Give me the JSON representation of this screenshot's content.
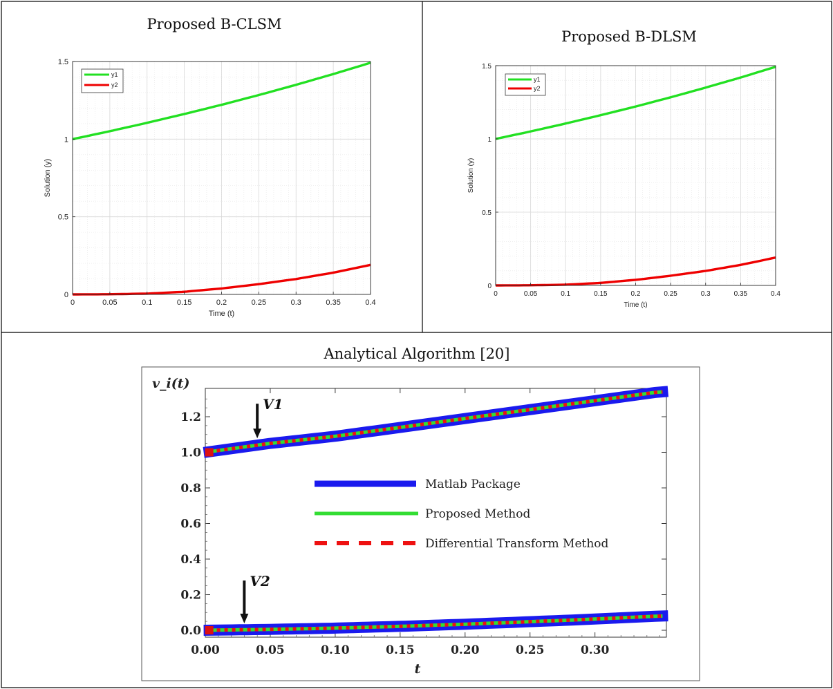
{
  "cells": [
    {
      "title": "Proposed B-CLSM"
    },
    {
      "title": "Proposed B-DLSM"
    },
    {
      "title": "Analytical Algorithm [20]"
    }
  ],
  "chart_data": [
    {
      "type": "line",
      "title": "",
      "xlabel": "Time (t)",
      "ylabel": "Solution (y)",
      "xlim": [
        0,
        0.4
      ],
      "ylim": [
        0,
        1.5
      ],
      "xticks": [
        "0",
        "0.05",
        "0.1",
        "0.15",
        "0.2",
        "0.25",
        "0.3",
        "0.35",
        "0.4"
      ],
      "yticks": [
        "0",
        "0.5",
        "1",
        "1.5"
      ],
      "grid": true,
      "legend": "top-left",
      "x": [
        0,
        0.05,
        0.1,
        0.15,
        0.2,
        0.25,
        0.3,
        0.35,
        0.4
      ],
      "series": [
        {
          "name": "y1",
          "color": "#22e022",
          "values": [
            1.0,
            1.051,
            1.105,
            1.162,
            1.221,
            1.284,
            1.35,
            1.419,
            1.492
          ]
        },
        {
          "name": "y2",
          "color": "#ee0000",
          "values": [
            0.0,
            0.001,
            0.005,
            0.017,
            0.038,
            0.066,
            0.099,
            0.14,
            0.19
          ]
        }
      ]
    },
    {
      "type": "line",
      "title": "",
      "xlabel": "Time (t)",
      "ylabel": "Solution (y)",
      "xlim": [
        0,
        0.4
      ],
      "ylim": [
        0,
        1.5
      ],
      "xticks": [
        "0",
        "0.05",
        "0.1",
        "0.15",
        "0.2",
        "0.25",
        "0.3",
        "0.35",
        "0.4"
      ],
      "yticks": [
        "0",
        "0.5",
        "1",
        "1.5"
      ],
      "grid": true,
      "legend": "top-left",
      "x": [
        0,
        0.05,
        0.1,
        0.15,
        0.2,
        0.25,
        0.3,
        0.35,
        0.4
      ],
      "series": [
        {
          "name": "y1",
          "color": "#22e022",
          "values": [
            1.0,
            1.051,
            1.105,
            1.162,
            1.221,
            1.284,
            1.35,
            1.419,
            1.492
          ]
        },
        {
          "name": "y2",
          "color": "#ee0000",
          "values": [
            0.0,
            0.001,
            0.005,
            0.017,
            0.038,
            0.066,
            0.099,
            0.14,
            0.19
          ]
        }
      ]
    },
    {
      "type": "line",
      "title": "",
      "xlabel": "t",
      "ylabel": "v_i(t)",
      "xlim": [
        0,
        0.36
      ],
      "ylim": [
        -0.02,
        1.36
      ],
      "xticks": [
        "0.00",
        "0.05",
        "0.10",
        "0.15",
        "0.20",
        "0.25",
        "0.30"
      ],
      "yticks": [
        "0.0",
        "0.2",
        "0.4",
        "0.6",
        "0.8",
        "1.0",
        "1.2"
      ],
      "grid": false,
      "legend": "center",
      "annotations": [
        {
          "text": "V1",
          "target": "upper curve",
          "x": 0.04,
          "y": 1.04
        },
        {
          "text": "V2",
          "target": "lower curve",
          "x": 0.03,
          "y": 0.0
        }
      ],
      "x": [
        0,
        0.05,
        0.1,
        0.15,
        0.2,
        0.25,
        0.3,
        0.35
      ],
      "series": [
        {
          "name": "Matlab Package",
          "color": "#1a1aee",
          "style": "solid-thick",
          "values_v1": [
            1.0,
            1.05,
            1.09,
            1.14,
            1.19,
            1.24,
            1.29,
            1.34
          ],
          "values_v2": [
            0.0,
            0.005,
            0.012,
            0.022,
            0.034,
            0.048,
            0.063,
            0.08
          ]
        },
        {
          "name": "Proposed Method",
          "color": "#33dd33",
          "style": "solid",
          "values_v1": [
            1.0,
            1.05,
            1.09,
            1.14,
            1.19,
            1.24,
            1.29,
            1.34
          ],
          "values_v2": [
            0.0,
            0.005,
            0.012,
            0.022,
            0.034,
            0.048,
            0.063,
            0.08
          ]
        },
        {
          "name": "Differential Transform Method",
          "color": "#ee1111",
          "style": "dashed",
          "values_v1": [
            1.0,
            1.05,
            1.09,
            1.14,
            1.19,
            1.24,
            1.29,
            1.34
          ],
          "values_v2": [
            0.0,
            0.005,
            0.012,
            0.022,
            0.034,
            0.048,
            0.063,
            0.08
          ]
        }
      ]
    }
  ]
}
